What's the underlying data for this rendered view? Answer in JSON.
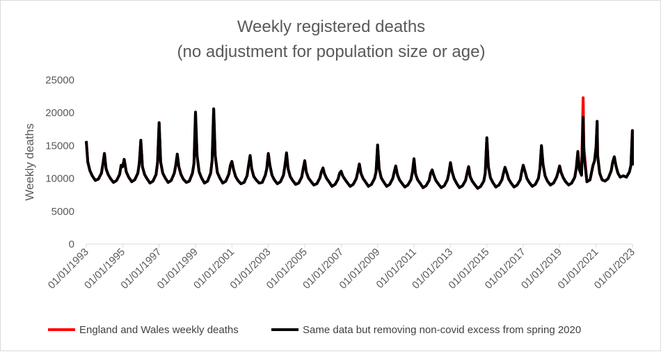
{
  "chart_data": {
    "type": "line",
    "title": "Weekly registered deaths",
    "subtitle": "(no adjustment for population size or age)",
    "xlabel": "",
    "ylabel": "Weekly deaths",
    "ylim": [
      0,
      25000
    ],
    "yticks": [
      0,
      5000,
      10000,
      15000,
      20000,
      25000
    ],
    "xlim": [
      "1993-01-01",
      "2023-01-01"
    ],
    "xtick_labels": [
      "01/01/1993",
      "01/01/1995",
      "01/01/1997",
      "01/01/1999",
      "01/01/2001",
      "01/01/2003",
      "01/01/2005",
      "01/01/2007",
      "01/01/2009",
      "01/01/2011",
      "01/01/2013",
      "01/01/2015",
      "01/01/2017",
      "01/01/2019",
      "01/01/2021",
      "01/01/2023"
    ],
    "grid": false,
    "legend_position": "bottom",
    "series": [
      {
        "name": "England and Wales weekly deaths",
        "color": "#ff0000",
        "x": [
          "1993-01-01",
          "1993-02-01",
          "1993-03-15",
          "1993-05-01",
          "1993-07-01",
          "1993-09-01",
          "1993-11-01",
          "1993-12-01",
          "1994-01-01",
          "1994-02-01",
          "1994-03-15",
          "1994-05-01",
          "1994-07-01",
          "1994-09-01",
          "1994-11-01",
          "1994-12-01",
          "1995-01-01",
          "1995-02-01",
          "1995-03-15",
          "1995-05-01",
          "1995-07-01",
          "1995-09-01",
          "1995-11-01",
          "1995-12-01",
          "1996-01-01",
          "1996-02-01",
          "1996-03-15",
          "1996-05-01",
          "1996-07-01",
          "1996-09-01",
          "1996-11-01",
          "1996-12-01",
          "1997-01-01",
          "1997-02-01",
          "1997-03-15",
          "1997-05-01",
          "1997-07-01",
          "1997-09-01",
          "1997-11-01",
          "1997-12-01",
          "1998-01-01",
          "1998-02-01",
          "1998-03-15",
          "1998-05-01",
          "1998-07-01",
          "1998-09-01",
          "1998-11-01",
          "1998-12-01",
          "1999-01-01",
          "1999-02-01",
          "1999-03-15",
          "1999-05-01",
          "1999-07-01",
          "1999-09-01",
          "1999-11-01",
          "1999-12-01",
          "2000-01-01",
          "2000-02-01",
          "2000-03-15",
          "2000-05-01",
          "2000-07-01",
          "2000-09-01",
          "2000-11-01",
          "2000-12-01",
          "2001-01-01",
          "2001-02-01",
          "2001-03-15",
          "2001-05-01",
          "2001-07-01",
          "2001-09-01",
          "2001-11-01",
          "2001-12-01",
          "2002-01-01",
          "2002-02-01",
          "2002-03-15",
          "2002-05-01",
          "2002-07-01",
          "2002-09-01",
          "2002-11-01",
          "2002-12-01",
          "2003-01-01",
          "2003-02-01",
          "2003-03-15",
          "2003-05-01",
          "2003-07-01",
          "2003-09-01",
          "2003-11-01",
          "2003-12-01",
          "2004-01-01",
          "2004-02-01",
          "2004-03-15",
          "2004-05-01",
          "2004-07-01",
          "2004-09-01",
          "2004-11-01",
          "2004-12-01",
          "2005-01-01",
          "2005-02-01",
          "2005-03-15",
          "2005-05-01",
          "2005-07-01",
          "2005-09-01",
          "2005-11-01",
          "2005-12-01",
          "2006-01-01",
          "2006-02-01",
          "2006-03-15",
          "2006-05-01",
          "2006-07-01",
          "2006-09-01",
          "2006-11-01",
          "2006-12-01",
          "2007-01-01",
          "2007-02-01",
          "2007-03-15",
          "2007-05-01",
          "2007-07-01",
          "2007-09-01",
          "2007-11-01",
          "2007-12-01",
          "2008-01-01",
          "2008-02-01",
          "2008-03-15",
          "2008-05-01",
          "2008-07-01",
          "2008-09-01",
          "2008-11-01",
          "2008-12-01",
          "2009-01-01",
          "2009-02-01",
          "2009-03-15",
          "2009-05-01",
          "2009-07-01",
          "2009-09-01",
          "2009-11-01",
          "2009-12-01",
          "2010-01-01",
          "2010-02-01",
          "2010-03-15",
          "2010-05-01",
          "2010-07-01",
          "2010-09-01",
          "2010-11-01",
          "2010-12-01",
          "2011-01-01",
          "2011-02-01",
          "2011-03-15",
          "2011-05-01",
          "2011-07-01",
          "2011-09-01",
          "2011-11-01",
          "2011-12-01",
          "2012-01-01",
          "2012-02-01",
          "2012-03-15",
          "2012-05-01",
          "2012-07-01",
          "2012-09-01",
          "2012-11-01",
          "2012-12-01",
          "2013-01-01",
          "2013-02-01",
          "2013-03-15",
          "2013-05-01",
          "2013-07-01",
          "2013-09-01",
          "2013-11-01",
          "2013-12-01",
          "2014-01-01",
          "2014-02-01",
          "2014-03-15",
          "2014-05-01",
          "2014-07-01",
          "2014-09-01",
          "2014-11-01",
          "2014-12-01",
          "2015-01-01",
          "2015-02-01",
          "2015-03-15",
          "2015-05-01",
          "2015-07-01",
          "2015-09-01",
          "2015-11-01",
          "2015-12-01",
          "2016-01-01",
          "2016-02-01",
          "2016-03-15",
          "2016-05-01",
          "2016-07-01",
          "2016-09-01",
          "2016-11-01",
          "2016-12-01",
          "2017-01-01",
          "2017-02-01",
          "2017-03-15",
          "2017-05-01",
          "2017-07-01",
          "2017-09-01",
          "2017-11-01",
          "2017-12-01",
          "2018-01-01",
          "2018-02-01",
          "2018-03-15",
          "2018-05-01",
          "2018-07-01",
          "2018-09-01",
          "2018-11-01",
          "2018-12-01",
          "2019-01-01",
          "2019-02-01",
          "2019-03-15",
          "2019-05-01",
          "2019-07-01",
          "2019-09-01",
          "2019-11-01",
          "2019-12-01",
          "2020-01-01",
          "2020-02-01",
          "2020-03-15",
          "2020-04-17",
          "2020-05-01",
          "2020-07-01",
          "2020-09-01",
          "2020-11-01",
          "2020-12-01",
          "2021-01-01",
          "2021-01-22",
          "2021-02-01",
          "2021-03-15",
          "2021-05-01",
          "2021-07-01",
          "2021-09-01",
          "2021-11-01",
          "2021-12-01",
          "2022-01-01",
          "2022-02-01",
          "2022-03-15",
          "2022-05-01",
          "2022-07-01",
          "2022-09-01",
          "2022-11-01",
          "2022-12-01",
          "2022-12-30",
          "2023-01-01"
        ],
        "y": [
          15700,
          12500,
          11200,
          10400,
          9700,
          9900,
          10800,
          12200,
          13800,
          11500,
          10600,
          10000,
          9400,
          9700,
          10600,
          12000,
          11800,
          12900,
          11000,
          10200,
          9500,
          9800,
          10800,
          12300,
          15800,
          11800,
          10600,
          10000,
          9300,
          9600,
          10600,
          12500,
          18500,
          12500,
          10800,
          10100,
          9400,
          9700,
          10800,
          12000,
          13700,
          11800,
          10600,
          9900,
          9400,
          9600,
          10800,
          12300,
          20100,
          13500,
          11000,
          10100,
          9300,
          9600,
          10800,
          12800,
          20600,
          13500,
          10900,
          10100,
          9300,
          9600,
          10700,
          12000,
          12600,
          11400,
          10300,
          9700,
          9200,
          9400,
          10400,
          12000,
          13500,
          11500,
          10300,
          9800,
          9300,
          9400,
          10500,
          11500,
          13800,
          12000,
          10500,
          9800,
          9200,
          9500,
          10500,
          12000,
          13900,
          11500,
          10300,
          9700,
          9100,
          9300,
          10200,
          11500,
          12700,
          11000,
          10100,
          9600,
          9000,
          9200,
          10100,
          11000,
          11600,
          10700,
          10000,
          9500,
          8800,
          9100,
          9900,
          10800,
          11100,
          10400,
          9900,
          9400,
          8800,
          9100,
          10000,
          11000,
          12200,
          10800,
          10000,
          9500,
          8800,
          9100,
          10000,
          11000,
          15100,
          11500,
          10100,
          9500,
          8800,
          9100,
          10000,
          11000,
          11900,
          10600,
          9800,
          9300,
          8700,
          9000,
          9800,
          11000,
          13000,
          10700,
          9800,
          9300,
          8600,
          8900,
          9700,
          10800,
          11300,
          10500,
          9700,
          9200,
          8600,
          8900,
          9800,
          10800,
          12400,
          11100,
          10000,
          9300,
          8600,
          8900,
          9700,
          10800,
          11800,
          10300,
          9600,
          9100,
          8500,
          8800,
          9600,
          10800,
          16200,
          11800,
          10100,
          9400,
          8700,
          9000,
          9800,
          10800,
          11700,
          11000,
          9900,
          9300,
          8700,
          9000,
          9800,
          11000,
          12000,
          11200,
          10000,
          9400,
          8800,
          9100,
          10000,
          11500,
          15000,
          12200,
          10400,
          9600,
          9000,
          9300,
          10200,
          11000,
          11900,
          10900,
          10100,
          9500,
          9000,
          9300,
          10200,
          11600,
          14100,
          11300,
          10500,
          22300,
          14800,
          9500,
          9800,
          12000,
          12700,
          14800,
          18700,
          13500,
          10800,
          9800,
          9600,
          10000,
          11200,
          12500,
          13300,
          12000,
          10800,
          10200,
          10400,
          10200,
          11000,
          12000,
          17300,
          12000
        ]
      },
      {
        "name": "Same data but removing non-covid excess from spring 2020",
        "color": "#000000",
        "x": [
          "2020-03-15",
          "2020-04-17",
          "2020-05-01"
        ],
        "y": [
          10500,
          19300,
          13800
        ]
      }
    ]
  }
}
